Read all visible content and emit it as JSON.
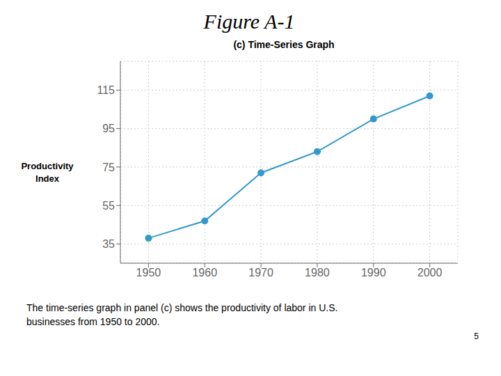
{
  "chart_data": {
    "type": "line",
    "title": "Figure A-1",
    "subtitle": "(c) Time-Series Graph",
    "ylabel": [
      "Productivity",
      "Index"
    ],
    "x": [
      1950,
      1960,
      1970,
      1980,
      1990,
      2000
    ],
    "values": [
      38,
      47,
      72,
      83,
      100,
      112
    ],
    "color": "#3399cc",
    "marker": "circle",
    "line_style": "solid",
    "xlim": [
      1945,
      2005
    ],
    "xticks": [
      1950,
      1960,
      1970,
      1980,
      1990,
      2000
    ],
    "ylim": [
      25,
      130
    ],
    "yticks": [
      35,
      55,
      75,
      95,
      115
    ],
    "grid": true,
    "annotations": [
      "The time-series graph in panel (c) shows the productivity of labor in U.S.",
      "businesses from 1950 to 2000.",
      "5"
    ]
  }
}
